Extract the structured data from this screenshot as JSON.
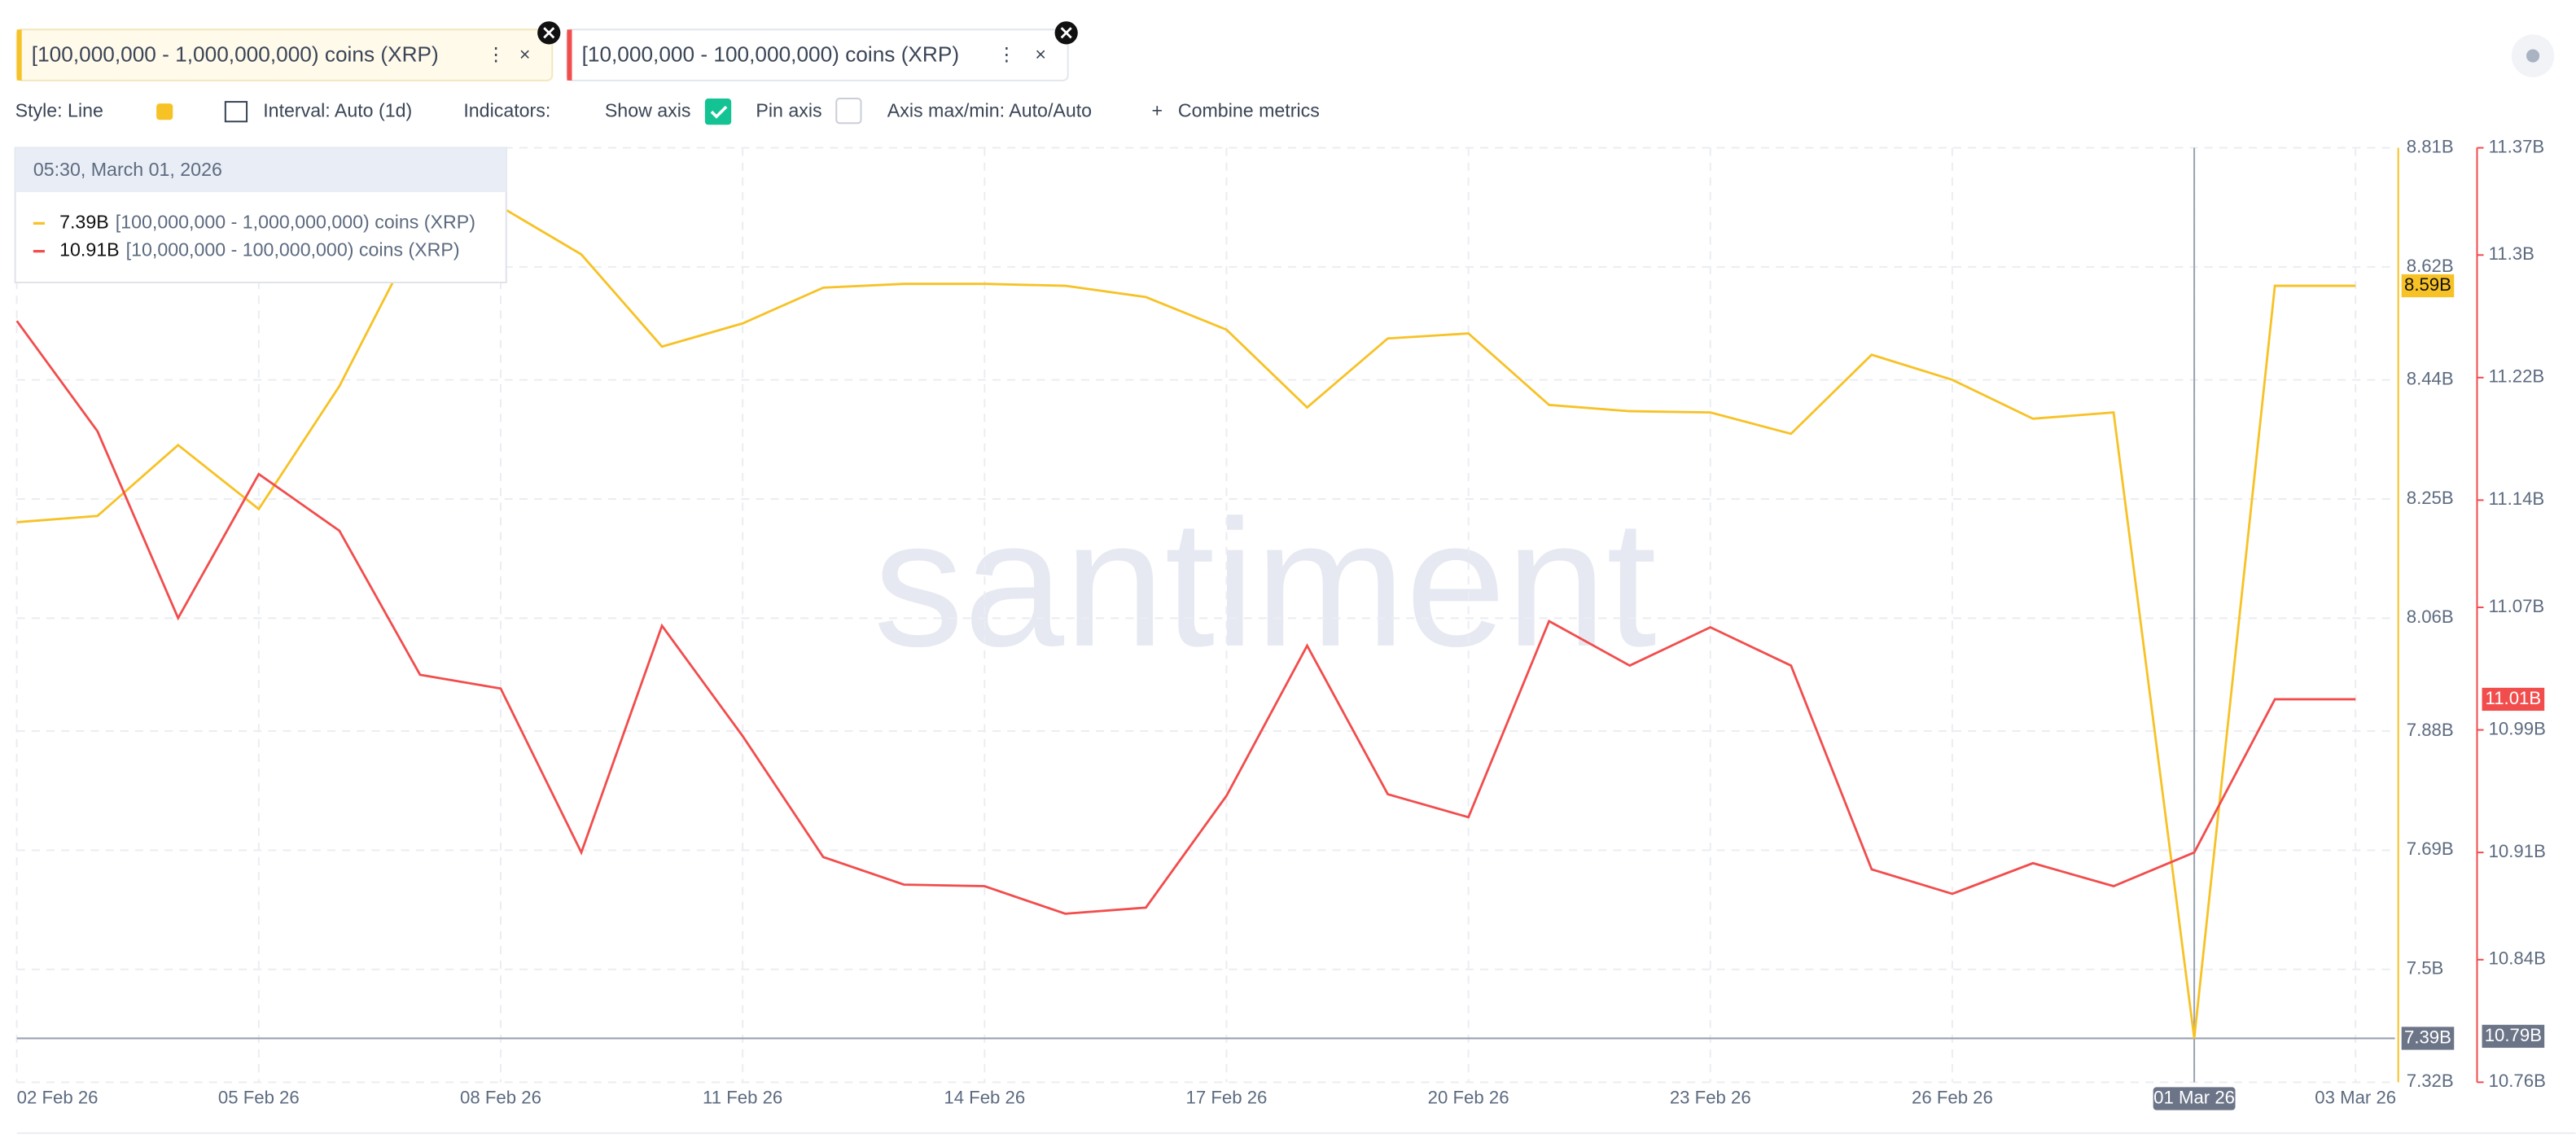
{
  "toolbar": {
    "style": "Style: Line",
    "interval": "Interval: Auto (1d)",
    "indicators": "Indicators:",
    "show_axis": "Show axis",
    "pin_axis": "Pin axis",
    "axis_minmax": "Axis max/min: Auto/Auto",
    "combine": "Combine metrics"
  },
  "watermark": "santiment",
  "chart_data": {
    "type": "line",
    "categories": [
      "02 Feb 26",
      null,
      null,
      "05 Feb 26",
      null,
      null,
      "08 Feb 26",
      null,
      null,
      "11 Feb 26",
      null,
      null,
      "14 Feb 26",
      null,
      null,
      "17 Feb 26",
      null,
      null,
      "20 Feb 26",
      null,
      null,
      "23 Feb 26",
      null,
      null,
      "26 Feb 26",
      null,
      null,
      "01 Mar 26",
      null,
      "03 Mar 26"
    ],
    "series": [
      {
        "name": "[100,000,000 - 1,000,000,000) coins (XRP)",
        "color": "#f7c226",
        "last_label": "8.59B",
        "values": [
          8.213,
          8.223,
          8.336,
          8.234,
          8.43,
          8.68,
          8.716,
          8.64,
          8.493,
          8.53,
          8.587,
          8.593,
          8.593,
          8.59,
          8.572,
          8.52,
          8.396,
          8.506,
          8.514,
          8.4,
          8.39,
          8.388,
          8.354,
          8.48,
          8.44,
          8.378,
          8.388,
          7.39,
          8.59,
          8.59
        ]
      },
      {
        "name": "[10,000,000 - 100,000,000) coins (XRP)",
        "color": "#f24d4d",
        "axis": "y2",
        "last_label": "11.01B",
        "values": [
          11.257,
          11.185,
          11.063,
          11.157,
          11.12,
          11.026,
          11.017,
          10.91,
          11.058,
          10.986,
          10.907,
          10.889,
          10.888,
          10.87,
          10.874,
          10.947,
          11.045,
          10.948,
          10.933,
          11.061,
          11.032,
          11.057,
          11.032,
          10.899,
          10.883,
          10.903,
          10.888,
          10.91,
          11.01,
          11.01
        ]
      }
    ],
    "ylim": [
      7.32,
      8.81
    ],
    "yticks": [
      {
        "value": 7.32,
        "label": "7.32B"
      },
      {
        "value": 7.5,
        "label": "7.5B"
      },
      {
        "value": 7.69,
        "label": "7.69B"
      },
      {
        "value": 7.88,
        "label": "7.88B"
      },
      {
        "value": 8.06,
        "label": "8.06B"
      },
      {
        "value": 8.25,
        "label": "8.25B"
      },
      {
        "value": 8.44,
        "label": "8.44B"
      },
      {
        "value": 8.62,
        "label": "8.62B"
      },
      {
        "value": 8.81,
        "label": "8.81B"
      }
    ],
    "y2lim": [
      10.76,
      11.37
    ],
    "y2ticks": [
      {
        "value": 10.76,
        "label": "10.76B"
      },
      {
        "value": 10.84,
        "label": "10.84B"
      },
      {
        "value": 10.91,
        "label": "10.91B"
      },
      {
        "value": 10.99,
        "label": "10.99B"
      },
      {
        "value": 11.07,
        "label": "11.07B"
      },
      {
        "value": 11.14,
        "label": "11.14B"
      },
      {
        "value": 11.22,
        "label": "11.22B"
      },
      {
        "value": 11.3,
        "label": "11.3B"
      },
      {
        "value": 11.37,
        "label": "11.37B"
      }
    ],
    "grid": true,
    "crosshair": {
      "index": 27,
      "y": {
        "value": 7.39,
        "label": "7.39B"
      },
      "y2": {
        "value": 10.79,
        "label": "10.79B"
      }
    },
    "tooltip": {
      "title": "05:30, March 01, 2026",
      "values": [
        "7.39B",
        "10.91B"
      ]
    }
  }
}
